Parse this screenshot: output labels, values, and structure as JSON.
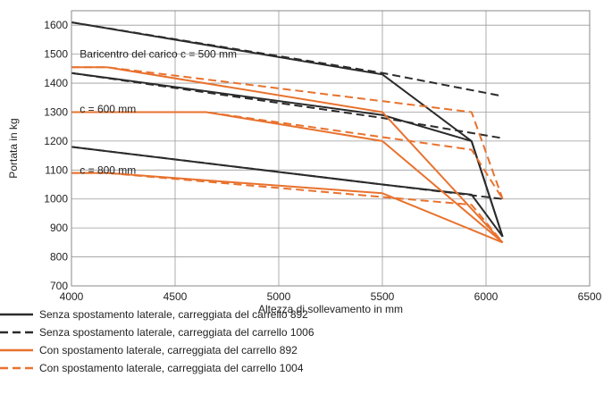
{
  "chart_data": {
    "type": "line",
    "xlabel": "Altezza di sollevamento in mm",
    "ylabel": "Portata in kg",
    "xlim": [
      4000,
      6500
    ],
    "ylim": [
      700,
      1650
    ],
    "xticks": [
      4000,
      4500,
      5000,
      5500,
      6000,
      6500
    ],
    "yticks": [
      700,
      800,
      900,
      1000,
      1100,
      1200,
      1300,
      1400,
      1500,
      1600
    ],
    "grid": true,
    "legend_position": "bottom-left",
    "colors": {
      "dark": "#2b2b2b",
      "orange": "#e8722e",
      "grid": "#9a9a9a"
    },
    "annotations": [
      {
        "text": "Baricentro del carico c = 500 mm",
        "x": 4040,
        "y": 1500
      },
      {
        "text": "c = 600 mm",
        "x": 4040,
        "y": 1310
      },
      {
        "text": "c = 800 mm",
        "x": 4040,
        "y": 1100
      }
    ],
    "series": [
      {
        "name": "Senza spostamento laterale, carreggiata del carrello 892",
        "color": "dark",
        "dash": "solid",
        "groups": [
          {
            "x": [
              4000,
              5500,
              5930,
              6080
            ],
            "y": [
              1610,
              1430,
              1200,
              870
            ]
          },
          {
            "x": [
              4000,
              5500,
              5930,
              6080
            ],
            "y": [
              1435,
              1290,
              1200,
              870
            ]
          },
          {
            "x": [
              4000,
              5500,
              5930,
              6080
            ],
            "y": [
              1180,
              1050,
              1015,
              870
            ]
          }
        ]
      },
      {
        "name": "Senza spostamento laterale, carreggiata del carrello 1006",
        "color": "dark",
        "dash": "dashed",
        "groups": [
          {
            "x": [
              4000,
              5500,
              6080
            ],
            "y": [
              1610,
              1435,
              1355
            ]
          },
          {
            "x": [
              4000,
              5500,
              6080
            ],
            "y": [
              1435,
              1280,
              1210
            ]
          },
          {
            "x": [
              4000,
              5500,
              6080
            ],
            "y": [
              1180,
              1050,
              1000
            ]
          }
        ]
      },
      {
        "name": "Con spostamento laterale, carreggiata del carrello 892",
        "color": "orange",
        "dash": "solid",
        "groups": [
          {
            "x": [
              4000,
              4170,
              5500,
              6080
            ],
            "y": [
              1455,
              1455,
              1300,
              850
            ]
          },
          {
            "x": [
              4000,
              4650,
              5500,
              6080
            ],
            "y": [
              1300,
              1300,
              1200,
              850
            ]
          },
          {
            "x": [
              4000,
              4170,
              5500,
              6080
            ],
            "y": [
              1090,
              1090,
              1020,
              850
            ]
          }
        ]
      },
      {
        "name": "Con spostamento laterale, carreggiata del carrello 1004",
        "color": "orange",
        "dash": "dashed",
        "groups": [
          {
            "x": [
              4000,
              4170,
              5930,
              6080
            ],
            "y": [
              1455,
              1455,
              1300,
              1000
            ]
          },
          {
            "x": [
              4000,
              4650,
              5930,
              6080
            ],
            "y": [
              1300,
              1300,
              1170,
              1000
            ]
          },
          {
            "x": [
              4000,
              4170,
              5930,
              6080
            ],
            "y": [
              1090,
              1090,
              980,
              850
            ]
          }
        ]
      }
    ]
  }
}
